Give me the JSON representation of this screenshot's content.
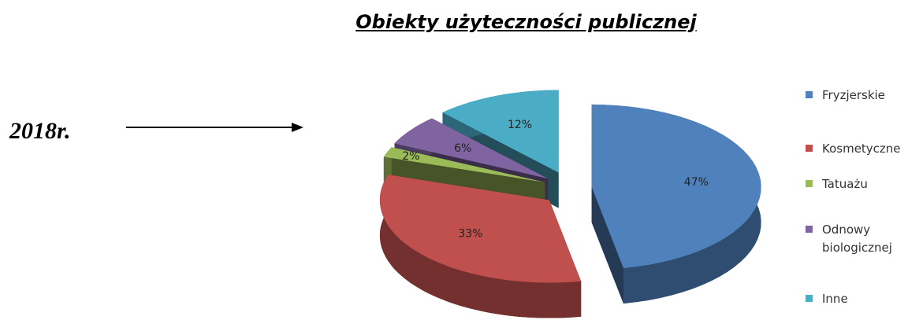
{
  "chart_data": {
    "type": "pie",
    "title": "Obiekty użyteczności publicznej",
    "annotation": "2018r.",
    "categories": [
      "Fryzjerskie",
      "Kosmetyczne",
      "Tatuażu",
      "Odnowy biologicznej",
      "Inne"
    ],
    "values": [
      47,
      33,
      2,
      6,
      12
    ],
    "value_labels": [
      "47%",
      "33%",
      "2%",
      "6%",
      "12%"
    ],
    "colors": [
      "#4f81bd",
      "#c0504d",
      "#9bbb59",
      "#8064a2",
      "#4bacc6"
    ],
    "legend": "right"
  }
}
